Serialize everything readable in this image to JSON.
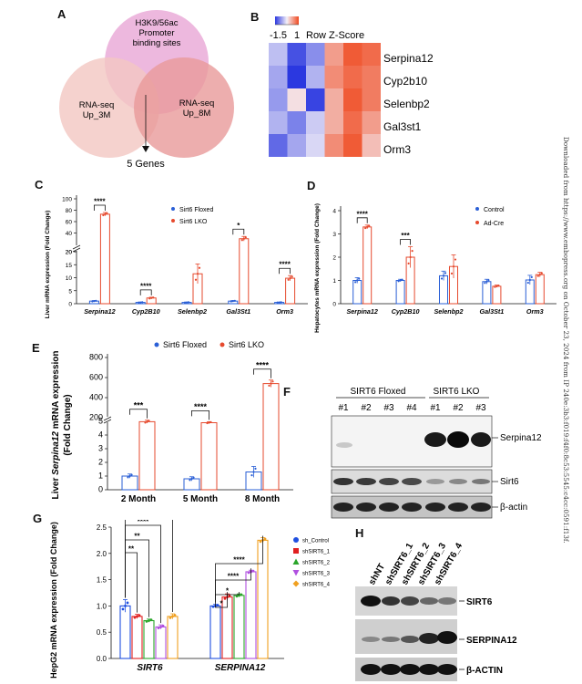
{
  "sidebar_text": "Downloaded from https://www.embopress.org on October 23, 2024 from IP 240e:3b3:f019:f4f0:8c53:5545:c4cc:0591:f13f.",
  "panels": {
    "a": "A",
    "b": "B",
    "c": "C",
    "d": "D",
    "e": "E",
    "f": "F",
    "g": "G",
    "h": "H"
  },
  "venn": {
    "top_lines": [
      "H3K9/56ac",
      "Promoter",
      "binding sites"
    ],
    "left_lines": [
      "RNA-seq",
      "Up_3M"
    ],
    "right_lines": [
      "RNA-seq",
      "Up_8M"
    ],
    "result": "5 Genes",
    "colors": {
      "top": "#e9a6d6",
      "left": "#f2c7c2",
      "right": "#e99a9a"
    }
  },
  "heatmap": {
    "scale_low": "-1.5",
    "scale_high": "1",
    "scale_title": "Row Z-Score",
    "genes": [
      "Serpina12",
      "Cyp2b10",
      "Selenbp2",
      "Gal3st1",
      "Orm3"
    ],
    "z": [
      [
        -0.4,
        -1.3,
        -0.8,
        0.5,
        0.9,
        0.8
      ],
      [
        -0.6,
        -1.5,
        -0.5,
        0.6,
        0.8,
        0.7
      ],
      [
        -0.7,
        0.1,
        -1.4,
        0.4,
        0.9,
        0.7
      ],
      [
        -0.5,
        -0.9,
        -0.3,
        0.4,
        0.8,
        0.5
      ],
      [
        -1.1,
        -0.6,
        -0.2,
        0.6,
        0.9,
        0.3
      ]
    ]
  },
  "chart_data": [
    {
      "panel": "C",
      "type": "bar",
      "ylabel": "Liver mRNA expression (Fold Change)",
      "categories": [
        "Serpina12",
        "Cyp2B10",
        "Selenbp2",
        "Gal3St1",
        "Orm3"
      ],
      "ticks_upper": [
        20,
        40,
        60,
        80,
        100
      ],
      "ticks_lower": [
        0,
        5,
        10,
        15,
        20
      ],
      "series": [
        {
          "name": "Sirt6 Floxed",
          "color": "#2a5fd6",
          "values": [
            1,
            0.5,
            0.5,
            1,
            0.5
          ],
          "err": [
            0.2,
            0.1,
            0.1,
            0.2,
            0.1
          ]
        },
        {
          "name": "Sirt6 LKO",
          "color": "#e64a2e",
          "values": [
            73,
            2.2,
            11.5,
            30,
            9.8
          ],
          "err": [
            3,
            0.3,
            3.8,
            4,
            1
          ]
        }
      ],
      "significance": [
        "****",
        "****",
        "",
        "*",
        "****"
      ]
    },
    {
      "panel": "D",
      "type": "bar",
      "ylabel": "Hepatocytes mRNA expression (Fold Change)",
      "categories": [
        "Serpina12",
        "Cyp2B10",
        "Selenbp2",
        "Gal3St1",
        "Orm3"
      ],
      "ylim": [
        0,
        4
      ],
      "ticks": [
        0,
        1,
        2,
        3,
        4
      ],
      "series": [
        {
          "name": "Control",
          "color": "#2a5fd6",
          "values": [
            1,
            1,
            1.2,
            0.95,
            1.02
          ],
          "err": [
            0.12,
            0.05,
            0.2,
            0.1,
            0.2
          ]
        },
        {
          "name": "Ad-Cre",
          "color": "#e64a2e",
          "values": [
            3.3,
            2.0,
            1.6,
            0.75,
            1.25
          ],
          "err": [
            0.08,
            0.45,
            0.5,
            0.05,
            0.1
          ]
        }
      ],
      "significance": [
        "****",
        "***",
        "",
        "",
        ""
      ]
    },
    {
      "panel": "E",
      "type": "bar",
      "ylabel_parts": [
        "Liver ",
        "Serpina12",
        " mRNA expression",
        "(Fold Change)"
      ],
      "categories": [
        "2 Month",
        "5 Month",
        "8 Month"
      ],
      "ticks_upper": [
        200,
        400,
        600,
        800
      ],
      "ticks_lower": [
        0,
        1,
        2,
        3,
        4,
        5
      ],
      "series": [
        {
          "name": "Sirt6 Floxed",
          "color": "#2a5fd6",
          "values": [
            1.0,
            0.8,
            1.3
          ],
          "err": [
            0.15,
            0.15,
            0.4
          ]
        },
        {
          "name": "Sirt6 LKO",
          "color": "#e64a2e",
          "values": [
            160,
            150,
            540
          ],
          "err": [
            15,
            10,
            35
          ]
        }
      ],
      "significance": [
        "***",
        "****",
        "****"
      ]
    },
    {
      "panel": "G",
      "type": "bar",
      "ylabel": "HepG2 mRNA expression (Fold Change)",
      "categories": [
        "SIRT6",
        "SERPINA12"
      ],
      "ylim": [
        0,
        2.5
      ],
      "ticks": [
        0.0,
        0.5,
        1.0,
        1.5,
        2.0,
        2.5
      ],
      "series": [
        {
          "name": "sh_Control",
          "color": "#1f4fe0",
          "marker": "circle",
          "values": [
            1.0,
            1.0
          ],
          "err": [
            0.12,
            0.03
          ]
        },
        {
          "name": "shSIRT6_1",
          "color": "#e02020",
          "marker": "square",
          "values": [
            0.8,
            1.17
          ],
          "err": [
            0.04,
            0.06
          ]
        },
        {
          "name": "shSIRT6_2",
          "color": "#2aa52a",
          "marker": "triangle",
          "values": [
            0.72,
            1.2
          ],
          "err": [
            0.03,
            0.03
          ]
        },
        {
          "name": "shSIRT6_3",
          "color": "#b050e0",
          "marker": "tri-down",
          "values": [
            0.6,
            1.65
          ],
          "err": [
            0.04,
            0.03
          ]
        },
        {
          "name": "shSIRT6_4",
          "color": "#f0a020",
          "marker": "diamond",
          "values": [
            0.8,
            2.25
          ],
          "err": [
            0.05,
            0.05
          ]
        }
      ],
      "significance_labels": [
        "**",
        "**",
        "****",
        "**",
        "*",
        "*",
        "****",
        "****"
      ]
    }
  ],
  "blot_f": {
    "group1": "SIRT6 Floxed",
    "group2": "SIRT6 LKO",
    "lanes": [
      "#1",
      "#2",
      "#3",
      "#4",
      "#1",
      "#2",
      "#3"
    ],
    "bands": [
      "Serpina12",
      "Sirt6",
      "β-actin"
    ]
  },
  "blot_h": {
    "lanes": [
      "shNT",
      "shSIRT6_1",
      "shSIRT6_2",
      "shSIRT6_3",
      "shSIRT6_4"
    ],
    "bands": [
      "SIRT6",
      "SERPINA12",
      "β-ACTIN"
    ]
  }
}
